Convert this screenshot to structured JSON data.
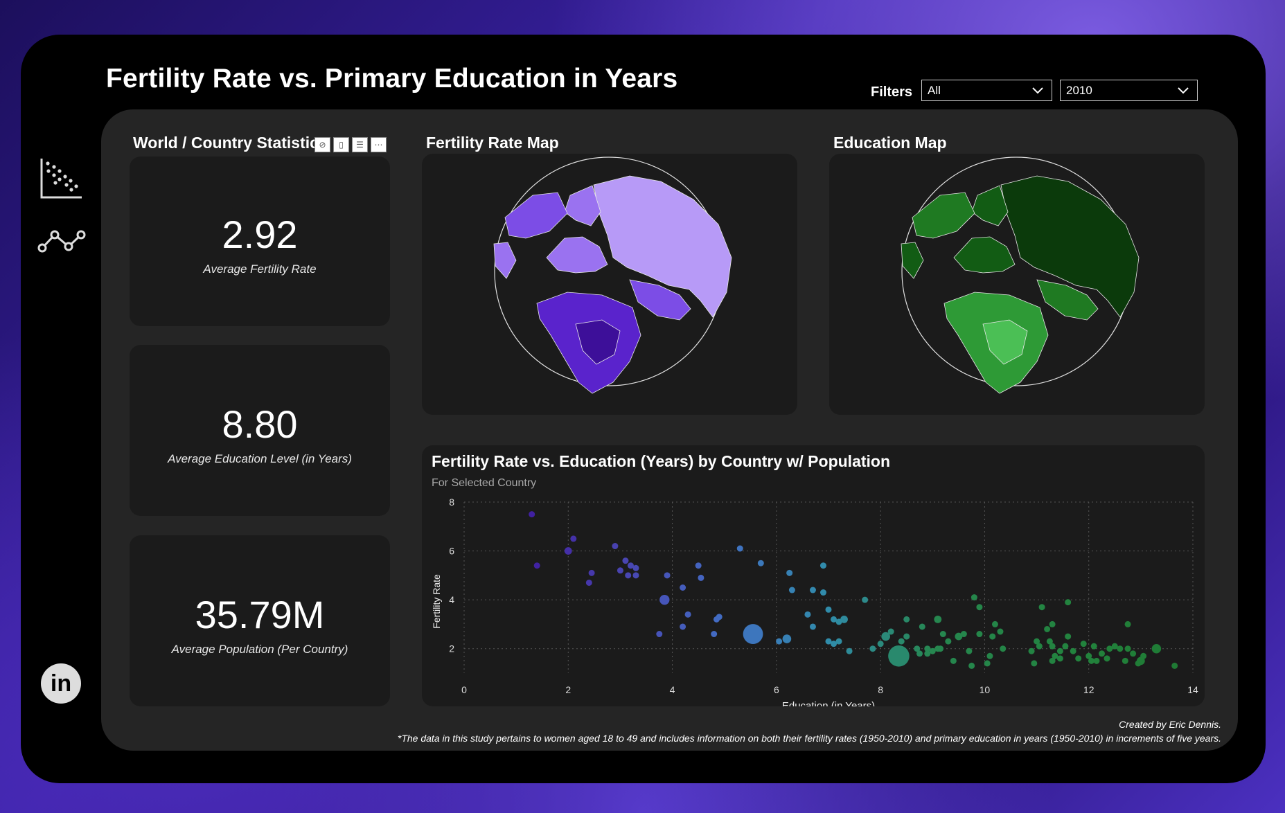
{
  "header": {
    "title": "Fertility Rate vs. Primary Education in Years",
    "filters_label": "Filters",
    "filter_region": "All",
    "filter_year": "2010"
  },
  "sidebar": {
    "icons": [
      "scatter-plot-icon",
      "line-chart-icon",
      "linkedin-icon"
    ],
    "linkedin_text": "in"
  },
  "stats": {
    "section_title": "World / Country Statistics",
    "fertility_value": "2.92",
    "fertility_label": "Average Fertility Rate",
    "education_value": "8.80",
    "education_label": "Average Education Level (in Years)",
    "population_value": "35.79M",
    "population_label": "Average Population (Per Country)"
  },
  "maps": {
    "fertility_title": "Fertility Rate Map",
    "education_title": "Education Map",
    "fertility_colors": [
      "#b79af7",
      "#9a72f0",
      "#7c4de6",
      "#5a23cc",
      "#3d0f99"
    ],
    "education_colors": [
      "#0b3a0b",
      "#125c14",
      "#1f7a22",
      "#2e9a36",
      "#4bbf55"
    ]
  },
  "chart": {
    "title": "Fertility Rate vs. Education (Years) by Country w/ Population",
    "subtitle": "For Selected Country"
  },
  "chart_data": {
    "type": "scatter",
    "title": "Fertility Rate vs. Education (Years) by Country w/ Population",
    "subtitle": "For Selected Country",
    "xlabel": "Education (in Years)",
    "ylabel": "Fertility Rate",
    "xlim": [
      0,
      14
    ],
    "ylim": [
      1,
      8
    ],
    "xticks": [
      0,
      2,
      4,
      6,
      8,
      10,
      12,
      14
    ],
    "yticks": [
      2,
      4,
      6,
      8
    ],
    "grid": true,
    "points": [
      [
        1.3,
        7.5,
        1
      ],
      [
        1.4,
        5.4,
        1
      ],
      [
        2.0,
        6.0,
        1.2
      ],
      [
        2.1,
        6.5,
        1
      ],
      [
        2.4,
        4.7,
        1
      ],
      [
        2.45,
        5.1,
        1
      ],
      [
        2.9,
        6.2,
        1
      ],
      [
        3.0,
        5.2,
        1
      ],
      [
        3.1,
        5.6,
        1
      ],
      [
        3.15,
        5.0,
        1
      ],
      [
        3.2,
        5.4,
        1
      ],
      [
        3.3,
        5.3,
        1
      ],
      [
        3.3,
        5.0,
        1
      ],
      [
        3.9,
        5.0,
        1
      ],
      [
        3.85,
        4.0,
        1.6
      ],
      [
        3.75,
        2.6,
        1
      ],
      [
        4.2,
        4.5,
        1
      ],
      [
        4.3,
        3.4,
        1
      ],
      [
        4.2,
        2.9,
        1
      ],
      [
        4.5,
        5.4,
        1
      ],
      [
        4.55,
        4.9,
        1
      ],
      [
        4.8,
        2.6,
        1
      ],
      [
        4.85,
        3.2,
        1
      ],
      [
        4.9,
        3.3,
        1
      ],
      [
        5.3,
        6.1,
        1
      ],
      [
        5.55,
        2.6,
        3.2
      ],
      [
        5.7,
        5.5,
        1
      ],
      [
        6.2,
        2.4,
        1.4
      ],
      [
        6.05,
        2.3,
        1
      ],
      [
        6.25,
        5.1,
        1
      ],
      [
        6.3,
        4.4,
        1
      ],
      [
        6.6,
        3.4,
        1
      ],
      [
        6.7,
        2.9,
        1
      ],
      [
        6.7,
        4.4,
        1
      ],
      [
        6.9,
        4.3,
        1
      ],
      [
        6.9,
        5.4,
        1
      ],
      [
        7.0,
        3.6,
        1
      ],
      [
        7.1,
        3.2,
        1
      ],
      [
        7.2,
        3.1,
        1
      ],
      [
        7.3,
        3.2,
        1.2
      ],
      [
        7.0,
        2.3,
        1
      ],
      [
        7.1,
        2.2,
        1
      ],
      [
        7.2,
        2.3,
        1
      ],
      [
        7.4,
        1.9,
        1
      ],
      [
        7.7,
        4.0,
        1
      ],
      [
        7.85,
        2.0,
        1
      ],
      [
        8.0,
        2.2,
        1
      ],
      [
        8.1,
        2.5,
        1.4
      ],
      [
        8.2,
        2.7,
        1
      ],
      [
        8.35,
        1.7,
        3.4
      ],
      [
        8.4,
        2.3,
        1
      ],
      [
        8.5,
        3.2,
        1
      ],
      [
        8.5,
        2.5,
        1
      ],
      [
        8.7,
        2.0,
        1
      ],
      [
        8.75,
        1.8,
        1
      ],
      [
        8.8,
        2.9,
        1
      ],
      [
        8.9,
        2.0,
        1
      ],
      [
        8.9,
        1.8,
        1
      ],
      [
        9.0,
        1.9,
        1
      ],
      [
        9.1,
        2.0,
        1
      ],
      [
        9.15,
        2.0,
        1
      ],
      [
        9.1,
        3.2,
        1.2
      ],
      [
        9.2,
        2.6,
        1
      ],
      [
        9.3,
        2.3,
        1
      ],
      [
        9.4,
        1.5,
        1
      ],
      [
        9.5,
        2.5,
        1.2
      ],
      [
        9.6,
        2.6,
        1
      ],
      [
        9.7,
        1.9,
        1
      ],
      [
        9.75,
        1.3,
        1
      ],
      [
        9.8,
        4.1,
        1
      ],
      [
        9.9,
        3.7,
        1
      ],
      [
        9.9,
        2.6,
        1
      ],
      [
        10.05,
        1.4,
        1
      ],
      [
        10.1,
        1.7,
        1
      ],
      [
        10.15,
        2.5,
        1
      ],
      [
        10.2,
        3.0,
        1
      ],
      [
        10.3,
        2.7,
        1
      ],
      [
        10.35,
        2.0,
        1
      ],
      [
        10.9,
        1.9,
        1
      ],
      [
        10.95,
        1.4,
        1
      ],
      [
        11.05,
        2.1,
        1
      ],
      [
        11.0,
        2.3,
        1
      ],
      [
        11.25,
        2.3,
        1
      ],
      [
        11.3,
        2.1,
        1
      ],
      [
        11.35,
        1.7,
        1
      ],
      [
        11.45,
        1.9,
        1
      ],
      [
        11.55,
        2.1,
        1
      ],
      [
        11.1,
        3.7,
        1
      ],
      [
        11.2,
        2.8,
        1
      ],
      [
        11.3,
        3.0,
        1
      ],
      [
        11.3,
        1.5,
        1
      ],
      [
        11.45,
        1.6,
        1
      ],
      [
        11.6,
        2.5,
        1
      ],
      [
        11.6,
        3.9,
        1
      ],
      [
        11.7,
        1.9,
        1
      ],
      [
        11.8,
        1.6,
        1
      ],
      [
        11.9,
        2.2,
        1
      ],
      [
        12.0,
        1.7,
        1
      ],
      [
        12.05,
        1.5,
        1
      ],
      [
        12.1,
        2.1,
        1
      ],
      [
        12.15,
        1.5,
        1
      ],
      [
        12.25,
        1.8,
        1
      ],
      [
        12.35,
        1.6,
        1
      ],
      [
        12.4,
        2.0,
        1
      ],
      [
        12.5,
        2.1,
        1
      ],
      [
        12.6,
        2.0,
        1
      ],
      [
        12.7,
        1.5,
        1
      ],
      [
        12.75,
        2.0,
        1
      ],
      [
        12.75,
        3.0,
        1
      ],
      [
        12.85,
        1.8,
        1
      ],
      [
        12.95,
        1.4,
        1
      ],
      [
        13.0,
        1.5,
        1.3
      ],
      [
        13.05,
        1.7,
        1
      ],
      [
        13.3,
        2.0,
        1.5
      ],
      [
        13.65,
        1.3,
        1
      ]
    ]
  },
  "footer": {
    "credit": "Created by Eric Dennis.",
    "note": "*The data in this study pertains to women aged 18 to 49 and includes information on both their fertility rates (1950-2010) and primary education in years (1950-2010) in increments of five years."
  }
}
